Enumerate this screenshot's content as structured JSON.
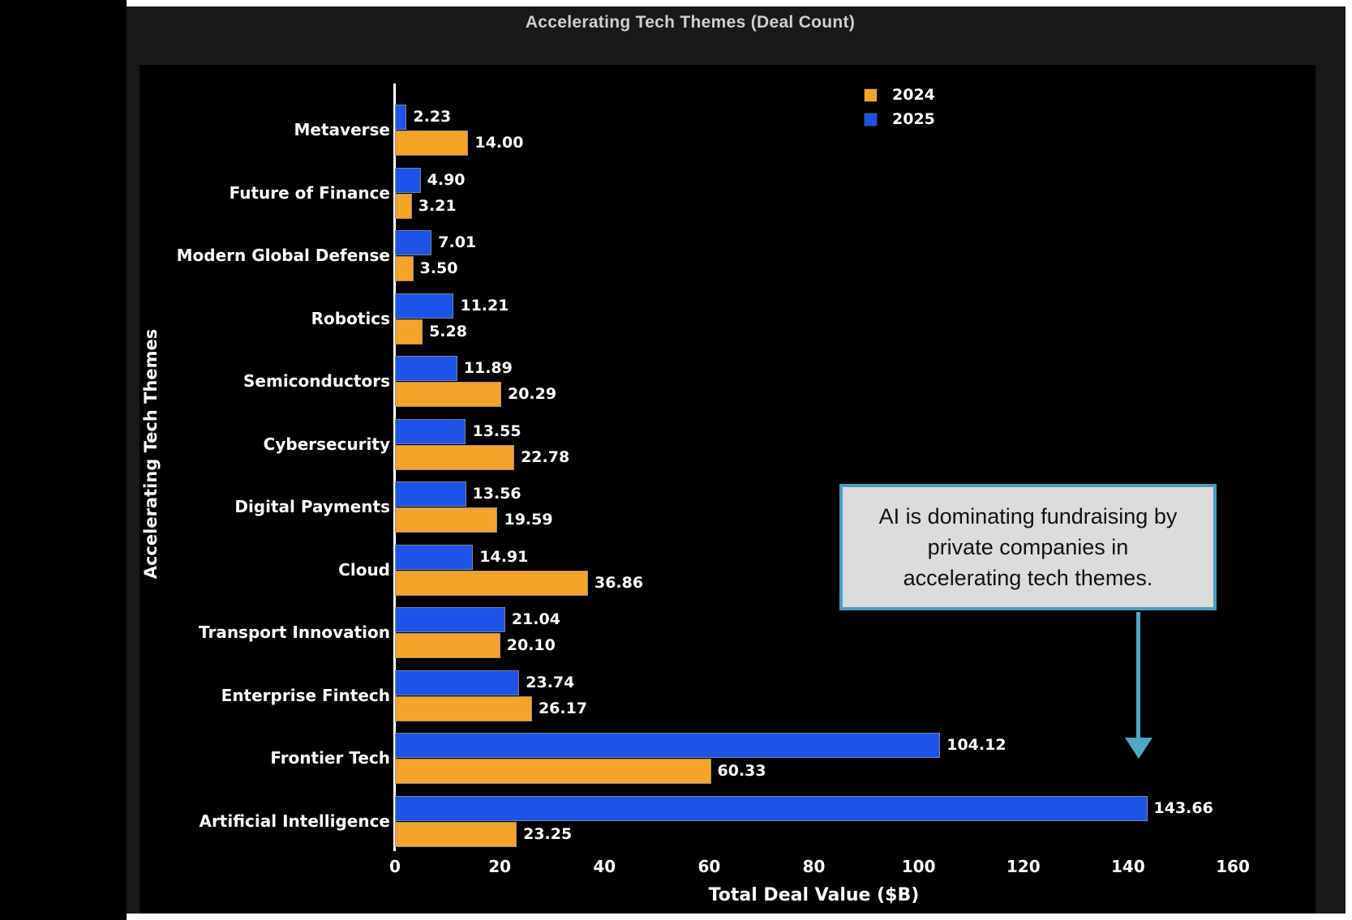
{
  "window": {
    "title": "Accelerating Tech Themes (Deal Count)"
  },
  "chart_data": {
    "type": "bar",
    "orientation": "horizontal",
    "title": "Accelerating Tech Themes (Deal Count)",
    "xlabel": "Total Deal Value ($B)",
    "ylabel": "Accelerating Tech Themes",
    "xlim": [
      0,
      160
    ],
    "xticks": [
      0,
      20,
      40,
      60,
      80,
      100,
      120,
      140,
      160
    ],
    "grid": "off",
    "legend_position": "upper-right-inside",
    "group_layout": {
      "top": "2025",
      "bottom": "2024"
    },
    "value_label_decimals": 2,
    "categories": [
      "Metaverse",
      "Future of Finance",
      "Modern Global Defense",
      "Robotics",
      "Semiconductors",
      "Cybersecurity",
      "Digital Payments",
      "Cloud",
      "Transport Innovation",
      "Enterprise Fintech",
      "Frontier Tech",
      "Artificial Intelligence"
    ],
    "series": [
      {
        "name": "2024",
        "color": "#F5A42A",
        "values": [
          14.0,
          3.21,
          3.5,
          5.28,
          20.29,
          22.78,
          19.59,
          36.86,
          20.1,
          26.17,
          60.33,
          23.25
        ]
      },
      {
        "name": "2025",
        "color": "#1E53E8",
        "values": [
          2.23,
          4.9,
          7.01,
          11.21,
          11.89,
          13.55,
          13.56,
          14.91,
          21.04,
          23.74,
          104.12,
          143.66
        ]
      }
    ]
  },
  "annotation": {
    "lines": [
      "AI is dominating fundraising by",
      "private companies in",
      "accelerating tech themes."
    ],
    "background": "#DCDCDC",
    "border_color": "#4A9FB8",
    "arrow_color": "#4FA9C6"
  },
  "colors": {
    "figure_background": "#000000",
    "slide_background": "#191919",
    "frame": "#FFFFFF",
    "text": "#FFFFFF",
    "title_text": "#CFCFCF",
    "bar_2024": "#F5A42A",
    "bar_2025": "#1E53E8"
  }
}
